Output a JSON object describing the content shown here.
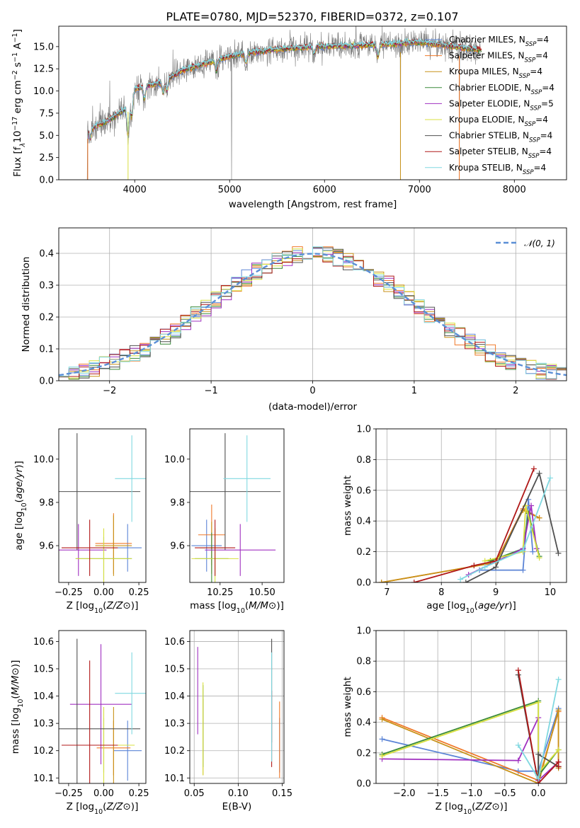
{
  "figure": {
    "title": "PLATE=0780, MJD=52370, FIBERID=0372, z=0.107"
  },
  "series_styles": [
    {
      "name": "Chabrier MILES, N_SSP=4",
      "label_base": "Chabrier MILES, N",
      "label_sub": "SSP",
      "label_tail": "=4",
      "color": "#5b84d6"
    },
    {
      "name": "Salpeter MILES, N_SSP=4",
      "label_base": "Salpeter MILES, N",
      "label_sub": "SSP",
      "label_tail": "=4",
      "color": "#f07828"
    },
    {
      "name": "Kroupa MILES, N_SSP=4",
      "label_base": "Kroupa MILES, N",
      "label_sub": "SSP",
      "label_tail": "=4",
      "color": "#c89218"
    },
    {
      "name": "Chabrier ELODIE, N_SSP=4",
      "label_base": "Chabrier ELODIE, N",
      "label_sub": "SSP",
      "label_tail": "=4",
      "color": "#3a8a3a"
    },
    {
      "name": "Salpeter ELODIE, N_SSP=5",
      "label_base": "Salpeter ELODIE, N",
      "label_sub": "SSP",
      "label_tail": "=5",
      "color": "#a030c0"
    },
    {
      "name": "Kroupa ELODIE, N_SSP=4",
      "label_base": "Kroupa ELODIE, N",
      "label_sub": "SSP",
      "label_tail": "=4",
      "color": "#d8e040"
    },
    {
      "name": "Chabrier STELIB, N_SSP=4",
      "label_base": "Chabrier STELIB, N",
      "label_sub": "SSP",
      "label_tail": "=4",
      "color": "#505050"
    },
    {
      "name": "Salpeter STELIB, N_SSP=4",
      "label_base": "Salpeter STELIB, N",
      "label_sub": "SSP",
      "label_tail": "=4",
      "color": "#b01818"
    },
    {
      "name": "Kroupa STELIB, N_SSP=4",
      "label_base": "Kroupa STELIB, N",
      "label_sub": "SSP",
      "label_tail": "=4",
      "color": "#80d8e0"
    }
  ],
  "chart_data": [
    {
      "id": "spectrum",
      "type": "line",
      "ylabel_base": "Flux [f",
      "ylabel_sub": "λ",
      "ylabel_mid": "10",
      "ylabel_sup1": "−17",
      "ylabel_mid2": " erg cm",
      "ylabel_sup2": "−2",
      "ylabel_mid3": " s",
      "ylabel_sup3": "−1",
      "ylabel_mid4": " A",
      "ylabel_sup4": "−1",
      "ylabel_end": "]",
      "xlabel": "wavelength [Angstrom, rest frame]",
      "xlim": [
        3200,
        8550
      ],
      "ylim": [
        0,
        17.3
      ],
      "xticks": [
        4000,
        5000,
        6000,
        7000,
        8000
      ],
      "yticks": [
        0.0,
        2.5,
        5.0,
        7.5,
        10.0,
        12.5,
        15.0
      ],
      "ytick_labels": [
        "0.0",
        "2.5",
        "5.0",
        "7.5",
        "10.0",
        "12.5",
        "15.0"
      ],
      "data_color": "#7a7a7a",
      "data_range": [
        3500,
        7650
      ],
      "continuum_anchors": [
        [
          3500,
          5.6
        ],
        [
          3650,
          6.3
        ],
        [
          3800,
          7.2
        ],
        [
          3900,
          8.0
        ],
        [
          4000,
          10.2
        ],
        [
          4100,
          10.5
        ],
        [
          4300,
          11.0
        ],
        [
          4500,
          12.3
        ],
        [
          4800,
          13.3
        ],
        [
          5000,
          13.9
        ],
        [
          5200,
          14.3
        ],
        [
          5500,
          14.7
        ],
        [
          5900,
          15.0
        ],
        [
          6300,
          15.1
        ],
        [
          6700,
          15.3
        ],
        [
          7000,
          15.5
        ],
        [
          7300,
          15.1
        ],
        [
          7650,
          14.6
        ]
      ],
      "dips": [
        [
          3530,
          1.1
        ],
        [
          3930,
          3.6
        ],
        [
          3968,
          2.2
        ],
        [
          4102,
          1.3
        ],
        [
          4300,
          1.1
        ],
        [
          4340,
          1.2
        ],
        [
          4861,
          1.2
        ],
        [
          5175,
          1.1
        ],
        [
          5890,
          0.8
        ],
        [
          6563,
          1.4
        ]
      ],
      "spikes": [
        [
          3500,
          0.0
        ],
        [
          5020,
          0.0
        ],
        [
          6800,
          0.0
        ],
        [
          7420,
          0.0
        ]
      ]
    },
    {
      "id": "residuals",
      "type": "histogram",
      "xlabel": "(data-model)/error",
      "ylabel": "Normed distribution",
      "xlim": [
        -2.5,
        2.5
      ],
      "ylim": [
        0,
        0.48
      ],
      "xticks": [
        -2,
        -1,
        0,
        1,
        2
      ],
      "xtick_labels": [
        "−2",
        "−1",
        "0",
        "1",
        "2"
      ],
      "yticks": [
        0.0,
        0.1,
        0.2,
        0.3,
        0.4
      ],
      "ytick_labels": [
        "0.0",
        "0.1",
        "0.2",
        "0.3",
        "0.4"
      ],
      "bin_width": 0.1,
      "curve_label": "𝒩(0, 1)",
      "curve_color": "#5b8fd6",
      "grid": true,
      "legend_loc": "upper right"
    },
    {
      "id": "age_Z",
      "type": "errorbar",
      "xlabel": "Z [log10(Z/Z⊙)]",
      "ylabel": "age  [log10(age/yr)]",
      "xlim": [
        -0.32,
        0.3
      ],
      "ylim": [
        9.43,
        10.14
      ],
      "xticks": [
        -0.25,
        0.0,
        0.25
      ],
      "xtick_labels": [
        "−0.25",
        "0.00",
        "0.25"
      ],
      "yticks": [
        9.6,
        9.8,
        10.0
      ],
      "ytick_labels": [
        "9.6",
        "9.8",
        "10.0"
      ],
      "points": [
        {
          "x": 0.17,
          "xerr": 0.1,
          "y": 9.59,
          "yerr": 0.11
        },
        {
          "x": 0.07,
          "xerr": 0.13,
          "y": 9.61,
          "yerr": 0.14
        },
        {
          "x": 0.07,
          "xerr": 0.13,
          "y": 9.6,
          "yerr": 0.14
        },
        {
          "x": 0.0,
          "xerr": 0.2,
          "y": 9.54,
          "yerr": 0.1
        },
        {
          "x": -0.18,
          "xerr": 0.2,
          "y": 9.58,
          "yerr": 0.12
        },
        {
          "x": 0.0,
          "xerr": 0.2,
          "y": 9.54,
          "yerr": 0.14
        },
        {
          "x": -0.19,
          "xerr": 0.45,
          "y": 9.85,
          "yerr": 0.27
        },
        {
          "x": -0.1,
          "xerr": 0.2,
          "y": 9.59,
          "yerr": 0.13
        },
        {
          "x": 0.2,
          "xerr": 0.12,
          "y": 9.91,
          "yerr": 0.2
        }
      ]
    },
    {
      "id": "age_mass",
      "type": "errorbar",
      "xlabel": "mass [log10(M/M⊙)]",
      "ylabel": "",
      "xlim": [
        10.07,
        10.63
      ],
      "ylim": [
        9.43,
        10.14
      ],
      "xticks": [
        10.25,
        10.5
      ],
      "xtick_labels": [
        "10.25",
        "10.50"
      ],
      "yticks": [
        9.6,
        9.8,
        10.0
      ],
      "ytick_labels": [
        "9.6",
        "9.8",
        "10.0"
      ],
      "points": [
        {
          "x": 10.17,
          "xerr": 0.09,
          "y": 9.6,
          "yerr": 0.12
        },
        {
          "x": 10.2,
          "xerr": 0.08,
          "y": 9.65,
          "yerr": 0.14
        },
        {
          "x": 10.2,
          "xerr": 0.07,
          "y": 9.59,
          "yerr": 0.12
        },
        {
          "x": 10.2,
          "xerr": 0.1,
          "y": 9.54,
          "yerr": 0.12
        },
        {
          "x": 10.37,
          "xerr": 0.21,
          "y": 9.58,
          "yerr": 0.12
        },
        {
          "x": 10.22,
          "xerr": 0.14,
          "y": 9.54,
          "yerr": 0.14
        },
        {
          "x": 10.28,
          "xerr": 0.33,
          "y": 9.85,
          "yerr": 0.27
        },
        {
          "x": 10.22,
          "xerr": 0.12,
          "y": 9.59,
          "yerr": 0.13
        },
        {
          "x": 10.41,
          "xerr": 0.14,
          "y": 9.91,
          "yerr": 0.2
        }
      ]
    },
    {
      "id": "weight_age",
      "type": "line",
      "xlabel": "age  [log10(age/yr)]",
      "ylabel": "mass weight",
      "xlim": [
        6.8,
        10.3
      ],
      "ylim": [
        0,
        1.0
      ],
      "xticks": [
        7,
        8,
        9,
        10
      ],
      "xtick_labels": [
        "7",
        "8",
        "9",
        "10"
      ],
      "yticks": [
        0.0,
        0.2,
        0.4,
        0.6,
        0.8,
        1.0
      ],
      "ytick_labels": [
        "0.0",
        "0.2",
        "0.4",
        "0.6",
        "0.8",
        "1.0"
      ],
      "grid": true,
      "series": [
        {
          "x": [
            8.7,
            9.5,
            9.6,
            9.68
          ],
          "y": [
            0.08,
            0.08,
            0.54,
            0.2
          ]
        },
        {
          "x": [
            6.9,
            9.0,
            9.5,
            9.8
          ],
          "y": [
            0.0,
            0.13,
            0.48,
            0.42
          ]
        },
        {
          "x": [
            6.9,
            9.0,
            9.5,
            9.8
          ],
          "y": [
            0.0,
            0.13,
            0.47,
            0.42
          ]
        },
        {
          "x": [
            8.9,
            9.5,
            9.6,
            9.8
          ],
          "y": [
            0.14,
            0.22,
            0.45,
            0.17
          ]
        },
        {
          "x": [
            8.5,
            9.5,
            9.65,
            9.75
          ],
          "y": [
            0.05,
            0.22,
            0.5,
            0.22
          ]
        },
        {
          "x": [
            8.8,
            9.5,
            9.55,
            9.8
          ],
          "y": [
            0.14,
            0.2,
            0.5,
            0.16
          ]
        },
        {
          "x": [
            8.45,
            9.0,
            9.8,
            10.15
          ],
          "y": [
            0.0,
            0.1,
            0.71,
            0.19
          ]
        },
        {
          "x": [
            7.5,
            8.6,
            9.0,
            9.7
          ],
          "y": [
            0.0,
            0.11,
            0.14,
            0.74
          ]
        },
        {
          "x": [
            8.35,
            8.8,
            9.5,
            10.0
          ],
          "y": [
            0.02,
            0.1,
            0.21,
            0.68
          ]
        }
      ]
    },
    {
      "id": "mass_Z",
      "type": "errorbar",
      "xlabel": "Z [log10(Z/Z⊙)]",
      "ylabel": "mass [log10(M/M⊙)]",
      "xlim": [
        -0.32,
        0.3
      ],
      "ylim": [
        10.08,
        10.64
      ],
      "xticks": [
        -0.25,
        0.0,
        0.25
      ],
      "xtick_labels": [
        "−0.25",
        "0.00",
        "0.25"
      ],
      "yticks": [
        10.1,
        10.2,
        10.3,
        10.4,
        10.5,
        10.6
      ],
      "ytick_labels": [
        "10.1",
        "10.2",
        "10.3",
        "10.4",
        "10.5",
        "10.6"
      ],
      "points": [
        {
          "x": 0.17,
          "xerr": 0.1,
          "y": 10.2,
          "yerr": 0.11
        },
        {
          "x": 0.07,
          "xerr": 0.12,
          "y": 10.21,
          "yerr": 0.1
        },
        {
          "x": 0.07,
          "xerr": 0.13,
          "y": 10.22,
          "yerr": 0.14
        },
        {
          "x": 0.0,
          "xerr": 0.2,
          "y": 10.22,
          "yerr": 0.1
        },
        {
          "x": -0.02,
          "xerr": 0.22,
          "y": 10.37,
          "yerr": 0.22
        },
        {
          "x": 0.0,
          "xerr": 0.22,
          "y": 10.22,
          "yerr": 0.14
        },
        {
          "x": -0.19,
          "xerr": 0.45,
          "y": 10.28,
          "yerr": 0.33
        },
        {
          "x": -0.1,
          "xerr": 0.2,
          "y": 10.22,
          "yerr": 0.31
        },
        {
          "x": 0.2,
          "xerr": 0.12,
          "y": 10.41,
          "yerr": 0.15
        }
      ]
    },
    {
      "id": "mass_ebv",
      "type": "errorbar",
      "xlabel": "E(B-V)",
      "ylabel": "",
      "xlim": [
        0.045,
        0.152
      ],
      "ylim": [
        10.08,
        10.64
      ],
      "xticks": [
        0.05,
        0.1,
        0.15
      ],
      "xtick_labels": [
        "0.05",
        "0.10",
        "0.15"
      ],
      "yticks": [
        10.1,
        10.2,
        10.3,
        10.4,
        10.5,
        10.6
      ],
      "ytick_labels": [
        "10.1",
        "10.2",
        "10.3",
        "10.4",
        "10.5",
        "10.6"
      ],
      "grid": true,
      "points": [
        {
          "x": 0.147,
          "xerr": 0.0,
          "y": 10.22,
          "yerr": 0.1
        },
        {
          "x": 0.147,
          "xerr": 0.0,
          "y": 10.24,
          "yerr": 0.14
        },
        {
          "x": 0.06,
          "xerr": 0.0,
          "y": 10.25,
          "yerr": 0.14
        },
        {
          "x": 0.06,
          "xerr": 0.0,
          "y": 10.29,
          "yerr": 0.15
        },
        {
          "x": 0.054,
          "xerr": 0.0,
          "y": 10.42,
          "yerr": 0.16
        },
        {
          "x": 0.06,
          "xerr": 0.0,
          "y": 10.28,
          "yerr": 0.17
        },
        {
          "x": 0.138,
          "xerr": 0.0,
          "y": 10.42,
          "yerr": 0.19
        },
        {
          "x": 0.138,
          "xerr": 0.0,
          "y": 10.28,
          "yerr": 0.14
        },
        {
          "x": 0.138,
          "xerr": 0.0,
          "y": 10.36,
          "yerr": 0.2
        }
      ]
    },
    {
      "id": "weight_Z",
      "type": "line",
      "xlabel": "Z [log10(Z/Z⊙)]",
      "ylabel": "mass weight",
      "xlim": [
        -2.42,
        0.42
      ],
      "ylim": [
        0,
        1.0
      ],
      "xticks": [
        -2.0,
        -1.5,
        -1.0,
        -0.5,
        0.0
      ],
      "xtick_labels": [
        "−2.0",
        "−1.5",
        "−1.0",
        "−0.5",
        "0.0"
      ],
      "yticks": [
        0.0,
        0.2,
        0.4,
        0.6,
        0.8,
        1.0
      ],
      "ytick_labels": [
        "0.0",
        "0.2",
        "0.4",
        "0.6",
        "0.8",
        "1.0"
      ],
      "grid": true,
      "series": [
        {
          "x": [
            -2.33,
            -0.3,
            0.0,
            0.3
          ],
          "y": [
            0.29,
            0.08,
            0.08,
            0.49
          ]
        },
        {
          "x": [
            -2.33,
            0.0,
            0.3,
            0.3
          ],
          "y": [
            0.43,
            0.02,
            0.47,
            0.14
          ]
        },
        {
          "x": [
            -2.33,
            0.0,
            0.3,
            0.3
          ],
          "y": [
            0.42,
            0.0,
            0.48,
            0.1
          ]
        },
        {
          "x": [
            -2.33,
            0.0,
            0.0,
            0.3
          ],
          "y": [
            0.19,
            0.54,
            0.05,
            0.22
          ]
        },
        {
          "x": [
            -2.33,
            -0.3,
            0.0,
            0.0,
            0.3
          ],
          "y": [
            0.16,
            0.15,
            0.43,
            0.02,
            0.14
          ]
        },
        {
          "x": [
            -2.33,
            0.0,
            0.0,
            0.3
          ],
          "y": [
            0.18,
            0.53,
            0.07,
            0.22
          ]
        },
        {
          "x": [
            -0.3,
            0.0,
            0.0,
            0.3
          ],
          "y": [
            0.71,
            0.0,
            0.19,
            0.11
          ]
        },
        {
          "x": [
            -0.3,
            0.0,
            0.3,
            0.3
          ],
          "y": [
            0.74,
            0.0,
            0.14,
            0.11
          ]
        },
        {
          "x": [
            -0.3,
            0.0,
            0.3
          ],
          "y": [
            0.25,
            0.03,
            0.68
          ]
        }
      ]
    }
  ]
}
